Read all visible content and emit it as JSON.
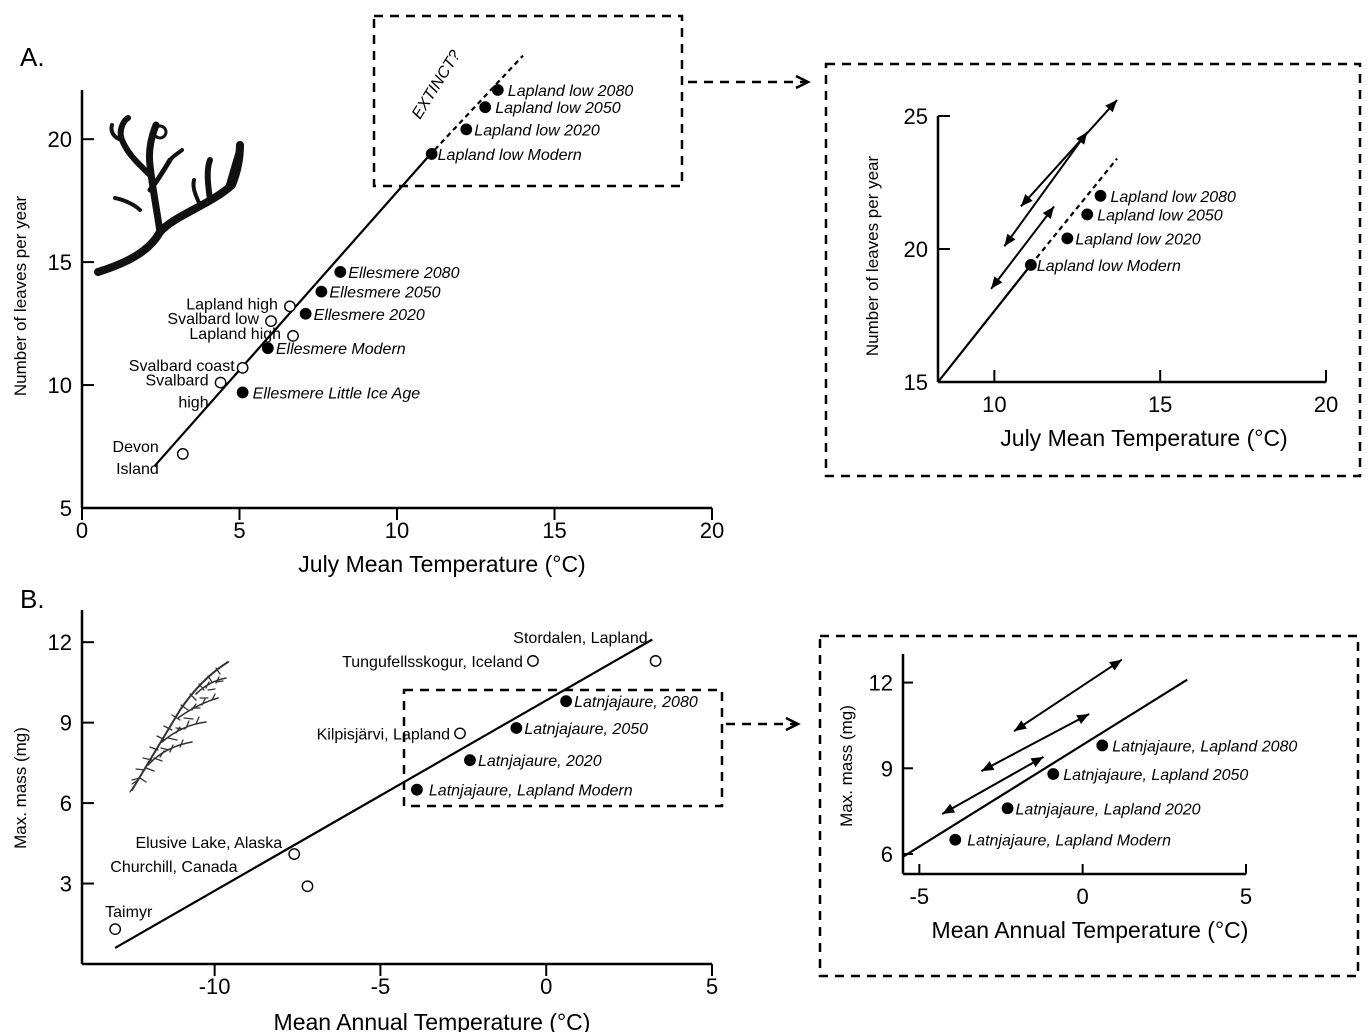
{
  "chart_data": [
    {
      "id": "A_main",
      "panel_label": "A.",
      "type": "scatter",
      "xlabel": "July Mean Temperature (°C)",
      "ylabel": "Number of leaves per year",
      "xlim": [
        0,
        20
      ],
      "ylim": [
        5,
        22
      ],
      "xticks": [
        0,
        5,
        10,
        15,
        20
      ],
      "yticks": [
        5,
        10,
        15,
        20
      ],
      "regression_line": [
        [
          2.3,
          6.7
        ],
        [
          11.0,
          19.3
        ]
      ],
      "extrapolation_line": [
        [
          11.0,
          19.3
        ],
        [
          14.0,
          23.4
        ]
      ],
      "extinct_label": "EXTINCT?",
      "points": [
        {
          "label": "Lapland low 2080",
          "x": 13.2,
          "y": 22.0,
          "filled": true,
          "italic": true
        },
        {
          "label": "Lapland low 2050",
          "x": 12.8,
          "y": 21.3,
          "filled": true,
          "italic": true
        },
        {
          "label": "Lapland low 2020",
          "x": 12.2,
          "y": 20.4,
          "filled": true,
          "italic": true
        },
        {
          "label": "Lapland low Modern",
          "x": 11.1,
          "y": 19.4,
          "filled": true,
          "italic": true
        },
        {
          "label": "Ellesmere 2080",
          "x": 8.2,
          "y": 14.6,
          "filled": true,
          "italic": true
        },
        {
          "label": "Ellesmere 2050",
          "x": 7.6,
          "y": 13.8,
          "filled": true,
          "italic": true
        },
        {
          "label": "Ellesmere 2020",
          "x": 7.1,
          "y": 12.9,
          "filled": true,
          "italic": true
        },
        {
          "label": "Ellesmere Modern",
          "x": 5.9,
          "y": 11.5,
          "filled": true,
          "italic": true
        },
        {
          "label": "Ellesmere Little Ice Age",
          "x": 5.1,
          "y": 9.7,
          "filled": true,
          "italic": true
        },
        {
          "label": "Lapland high",
          "x": 6.6,
          "y": 13.2,
          "filled": false,
          "italic": false
        },
        {
          "label": "Svalbard low",
          "x": 6.0,
          "y": 12.6,
          "filled": false,
          "italic": false
        },
        {
          "label": "Lapland high",
          "x": 6.7,
          "y": 12.0,
          "filled": false,
          "italic": false
        },
        {
          "label": "Svalbard coast",
          "x": 5.1,
          "y": 10.7,
          "filled": false,
          "italic": false
        },
        {
          "label": "Svalbard high",
          "x": 4.4,
          "y": 10.1,
          "filled": false,
          "italic": false
        },
        {
          "label": "Devon Island",
          "x": 3.2,
          "y": 7.2,
          "filled": false,
          "italic": false
        }
      ]
    },
    {
      "id": "A_zoom",
      "type": "scatter",
      "xlabel": "July Mean Temperature (°C)",
      "ylabel": "Number of leaves per year",
      "xlim": [
        8.3,
        20
      ],
      "ylim": [
        15,
        25
      ],
      "xticks": [
        10,
        15,
        20
      ],
      "yticks": [
        15,
        20,
        25
      ],
      "regression_line": [
        [
          8.3,
          15.0
        ],
        [
          11.1,
          19.4
        ]
      ],
      "extrapolation_line": [
        [
          11.1,
          19.4
        ],
        [
          13.7,
          23.4
        ]
      ],
      "double_arrows": [
        [
          [
            9.9,
            18.5
          ],
          [
            11.8,
            21.6
          ]
        ],
        [
          [
            10.3,
            20.1
          ],
          [
            12.8,
            24.4
          ]
        ],
        [
          [
            10.8,
            21.6
          ],
          [
            13.7,
            25.6
          ]
        ]
      ],
      "points": [
        {
          "label": "Lapland low 2080",
          "x": 13.2,
          "y": 22.0,
          "filled": true
        },
        {
          "label": "Lapland low 2050",
          "x": 12.8,
          "y": 21.3,
          "filled": true
        },
        {
          "label": "Lapland low 2020",
          "x": 12.2,
          "y": 20.4,
          "filled": true
        },
        {
          "label": "Lapland low Modern",
          "x": 11.1,
          "y": 19.4,
          "filled": true
        }
      ]
    },
    {
      "id": "B_main",
      "panel_label": "B.",
      "type": "scatter",
      "xlabel": "Mean Annual Temperature (°C)",
      "ylabel": "Max. mass (mg)",
      "xlim": [
        -14,
        5
      ],
      "ylim": [
        0,
        13.2
      ],
      "xticks": [
        -10,
        -5,
        0,
        5
      ],
      "yticks": [
        3,
        6,
        9,
        12
      ],
      "regression_line": [
        [
          -13.0,
          0.6
        ],
        [
          3.2,
          12.1
        ]
      ],
      "points": [
        {
          "label": "Latnjajaure, 2080",
          "x": 0.6,
          "y": 9.8,
          "filled": true,
          "italic": true
        },
        {
          "label": "Latnjajaure, 2050",
          "x": -0.9,
          "y": 8.8,
          "filled": true,
          "italic": true
        },
        {
          "label": "Latnjajaure, 2020",
          "x": -2.3,
          "y": 7.6,
          "filled": true,
          "italic": true
        },
        {
          "label": "Latnjajaure, Lapland Modern",
          "x": -3.9,
          "y": 6.5,
          "filled": true,
          "italic": true
        },
        {
          "label": "Stordalen, Lapland",
          "x": 3.3,
          "y": 11.3,
          "filled": false,
          "italic": false
        },
        {
          "label": "Tungufellsskogur, Iceland",
          "x": -0.4,
          "y": 11.3,
          "filled": false,
          "italic": false
        },
        {
          "label": "Kilpisjärvi, Lapland",
          "x": -2.6,
          "y": 8.6,
          "filled": false,
          "italic": false
        },
        {
          "label": "Elusive Lake, Alaska",
          "x": -7.6,
          "y": 4.1,
          "filled": false,
          "italic": false
        },
        {
          "label": "Churchill, Canada",
          "x": -7.2,
          "y": 2.9,
          "filled": false,
          "italic": false
        },
        {
          "label": "Taimyr",
          "x": -13.0,
          "y": 1.3,
          "filled": false,
          "italic": false
        }
      ]
    },
    {
      "id": "B_zoom",
      "type": "scatter",
      "xlabel": "Mean Annual Temperature (°C)",
      "ylabel": "Max. mass (mg)",
      "xlim": [
        -5.5,
        5
      ],
      "ylim": [
        5.3,
        13
      ],
      "xticks": [
        -5,
        0,
        5
      ],
      "yticks": [
        6,
        9,
        12
      ],
      "regression_line": [
        [
          -5.5,
          5.9
        ],
        [
          3.2,
          12.1
        ]
      ],
      "double_arrows": [
        [
          [
            -4.3,
            7.4
          ],
          [
            -1.2,
            9.4
          ]
        ],
        [
          [
            -3.1,
            8.9
          ],
          [
            0.2,
            10.9
          ]
        ],
        [
          [
            -2.1,
            10.3
          ],
          [
            1.2,
            12.8
          ]
        ]
      ],
      "points": [
        {
          "label": "Latnjajaure, Lapland 2080",
          "x": 0.6,
          "y": 9.8,
          "filled": true
        },
        {
          "label": "Latnjajaure, Lapland 2050",
          "x": -0.9,
          "y": 8.8,
          "filled": true
        },
        {
          "label": "Latnjajaure, Lapland 2020",
          "x": -2.3,
          "y": 7.6,
          "filled": true
        },
        {
          "label": "Latnjajaure, Lapland Modern",
          "x": -3.9,
          "y": 6.5,
          "filled": true
        }
      ]
    }
  ]
}
